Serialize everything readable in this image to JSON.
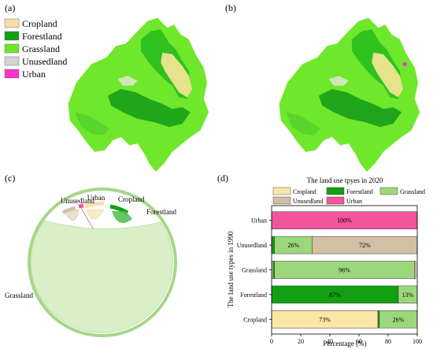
{
  "panels": {
    "a": "(a)",
    "b": "(b)",
    "c": "(c)",
    "d": "(d)"
  },
  "colors": {
    "Cropland": "#f5deaa",
    "Forestland": "#12a012",
    "Grassland": "#6fe72b",
    "Unusedland": "#d3d3d3",
    "Urban": "#ff33cc"
  },
  "map_legend": [
    {
      "label": "Cropland",
      "color": "#f5deaa"
    },
    {
      "label": "Forestland",
      "color": "#12a012"
    },
    {
      "label": "Grassland",
      "color": "#6fe72b"
    },
    {
      "label": "Unusedland",
      "color": "#d3d3d3"
    },
    {
      "label": "Urban",
      "color": "#ff33cc"
    }
  ],
  "chord": {
    "labels": [
      "Unusedland",
      "Urban",
      "Cropland",
      "Forestland",
      "Grassland"
    ]
  },
  "chart_data": {
    "type": "bar",
    "orientation": "horizontal",
    "stacked": true,
    "title": "The land use tpyes in 2020",
    "xlabel": "Percentage (%)",
    "ylabel": "The land use types in 1990",
    "xlim": [
      0,
      100
    ],
    "xticks": [
      "0",
      "20",
      "40",
      "60",
      "80",
      "100"
    ],
    "legend_position": "top",
    "categories": [
      "Urban",
      "Unusedland",
      "Grassland",
      "Forestland",
      "Cropland"
    ],
    "series": [
      {
        "name": "Cropland",
        "color": "#fbe6a6",
        "values": [
          0,
          0,
          1,
          0,
          73
        ]
      },
      {
        "name": "Forestland",
        "color": "#12a012",
        "values": [
          0,
          2,
          1,
          87,
          1
        ]
      },
      {
        "name": "Grassland",
        "color": "#9cd77c",
        "values": [
          0,
          26,
          96,
          13,
          26
        ]
      },
      {
        "name": "Unusedland",
        "color": "#d2bfa6",
        "values": [
          0,
          72,
          1,
          0,
          0
        ]
      },
      {
        "name": "Urban",
        "color": "#f2559a",
        "values": [
          100,
          0,
          0,
          0,
          0
        ]
      }
    ],
    "data_labels": [
      {
        "category": "Urban",
        "series": "Urban",
        "text": "100%"
      },
      {
        "category": "Unusedland",
        "series": "Grassland",
        "text": "26%"
      },
      {
        "category": "Unusedland",
        "series": "Unusedland",
        "text": "72%"
      },
      {
        "category": "Grassland",
        "series": "Grassland",
        "text": "96%"
      },
      {
        "category": "Forestland",
        "series": "Forestland",
        "text": "87%"
      },
      {
        "category": "Forestland",
        "series": "Grassland",
        "text": "13%"
      },
      {
        "category": "Cropland",
        "series": "Cropland",
        "text": "73%"
      },
      {
        "category": "Cropland",
        "series": "Grassland",
        "text": "26%"
      }
    ]
  }
}
